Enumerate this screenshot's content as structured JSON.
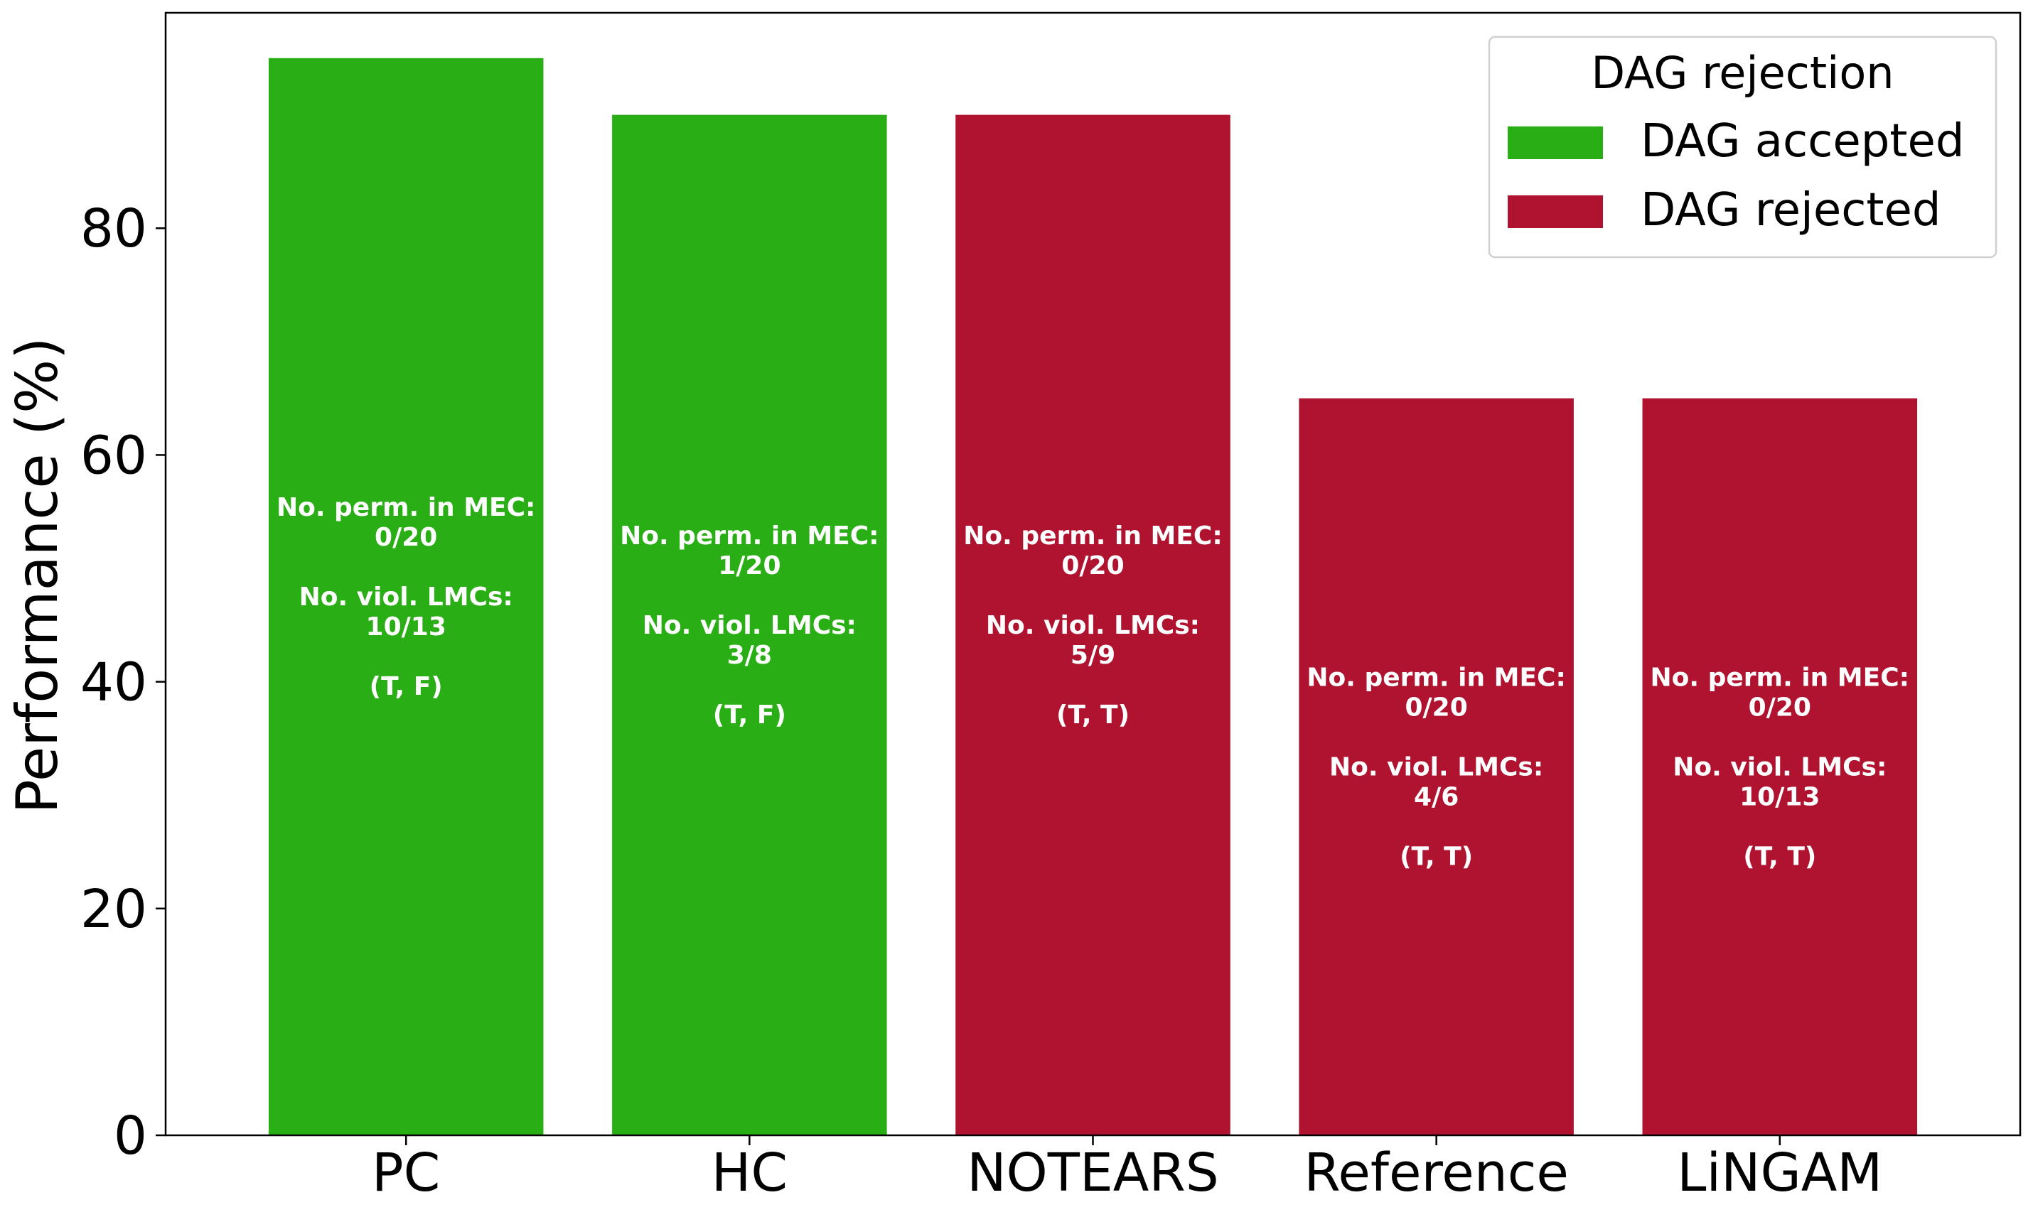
{
  "chart_data": {
    "type": "bar",
    "title": "",
    "xlabel": "",
    "ylabel": "Performance (%)",
    "ylim": [
      0,
      99
    ],
    "yticks": [
      0,
      20,
      40,
      60,
      80
    ],
    "grid": false,
    "categories": [
      "PC",
      "HC",
      "NOTEARS",
      "Reference",
      "LiNGAM"
    ],
    "values": [
      95,
      90,
      90,
      65,
      65
    ],
    "status": [
      "DAG accepted",
      "DAG accepted",
      "DAG rejected",
      "DAG rejected",
      "DAG rejected"
    ],
    "annotations": [
      [
        "No. perm. in MEC:",
        "0/20",
        "",
        "No. viol. LMCs:",
        "10/13",
        "",
        "(T, F)"
      ],
      [
        "No. perm. in MEC:",
        "1/20",
        "",
        "No. viol. LMCs:",
        "3/8",
        "",
        "(T, F)"
      ],
      [
        "No. perm. in MEC:",
        "0/20",
        "",
        "No. viol. LMCs:",
        "5/9",
        "",
        "(T, T)"
      ],
      [
        "No. perm. in MEC:",
        "0/20",
        "",
        "No. viol. LMCs:",
        "4/6",
        "",
        "(T, T)"
      ],
      [
        "No. perm. in MEC:",
        "0/20",
        "",
        "No. viol. LMCs:",
        "10/13",
        "",
        "(T, T)"
      ]
    ],
    "legend": {
      "title": "DAG rejection",
      "placement": "top-right",
      "entries": [
        {
          "label": "DAG accepted",
          "color": "#2aae15"
        },
        {
          "label": "DAG rejected",
          "color": "#af132f"
        }
      ]
    },
    "colors": {
      "DAG accepted": "#2aae15",
      "DAG rejected": "#af132f",
      "annotation_text": "#ffffff",
      "axis": "#000000"
    }
  }
}
